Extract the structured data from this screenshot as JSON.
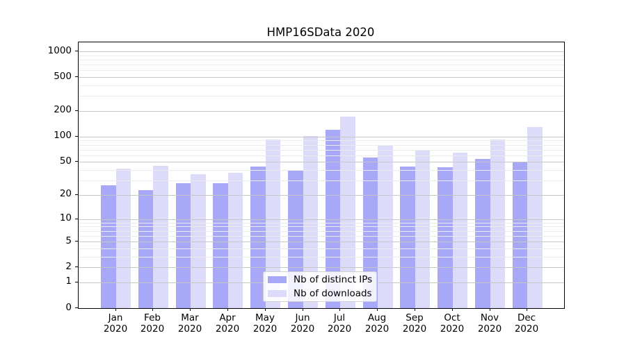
{
  "chart_data": {
    "type": "bar",
    "title": "HMP16SData 2020",
    "categories": [
      "Jan",
      "Feb",
      "Mar",
      "Apr",
      "May",
      "Jun",
      "Jul",
      "Aug",
      "Sep",
      "Oct",
      "Nov",
      "Dec"
    ],
    "year_label": "2020",
    "series": [
      {
        "name": "Nb of distinct IPs",
        "color": "#a8a8f8",
        "values": [
          26,
          23,
          28,
          28,
          44,
          40,
          120,
          56,
          44,
          43,
          54,
          50
        ]
      },
      {
        "name": "Nb of downloads",
        "color": "#dcdcfa",
        "values": [
          42,
          45,
          36,
          37,
          93,
          102,
          172,
          80,
          68,
          65,
          93,
          130
        ]
      }
    ],
    "y_scale": "log1p",
    "y_ticks": [
      0,
      1,
      2,
      5,
      10,
      20,
      50,
      100,
      200,
      500,
      1000
    ],
    "y_minor_gridlines": [
      3,
      4,
      6,
      7,
      8,
      9,
      30,
      40,
      60,
      70,
      80,
      90,
      300,
      400,
      600,
      700,
      800,
      900
    ],
    "ylim": [
      0,
      1275
    ],
    "xlabel": "",
    "ylabel": "",
    "grid": "on",
    "legend_position": "lower center"
  }
}
